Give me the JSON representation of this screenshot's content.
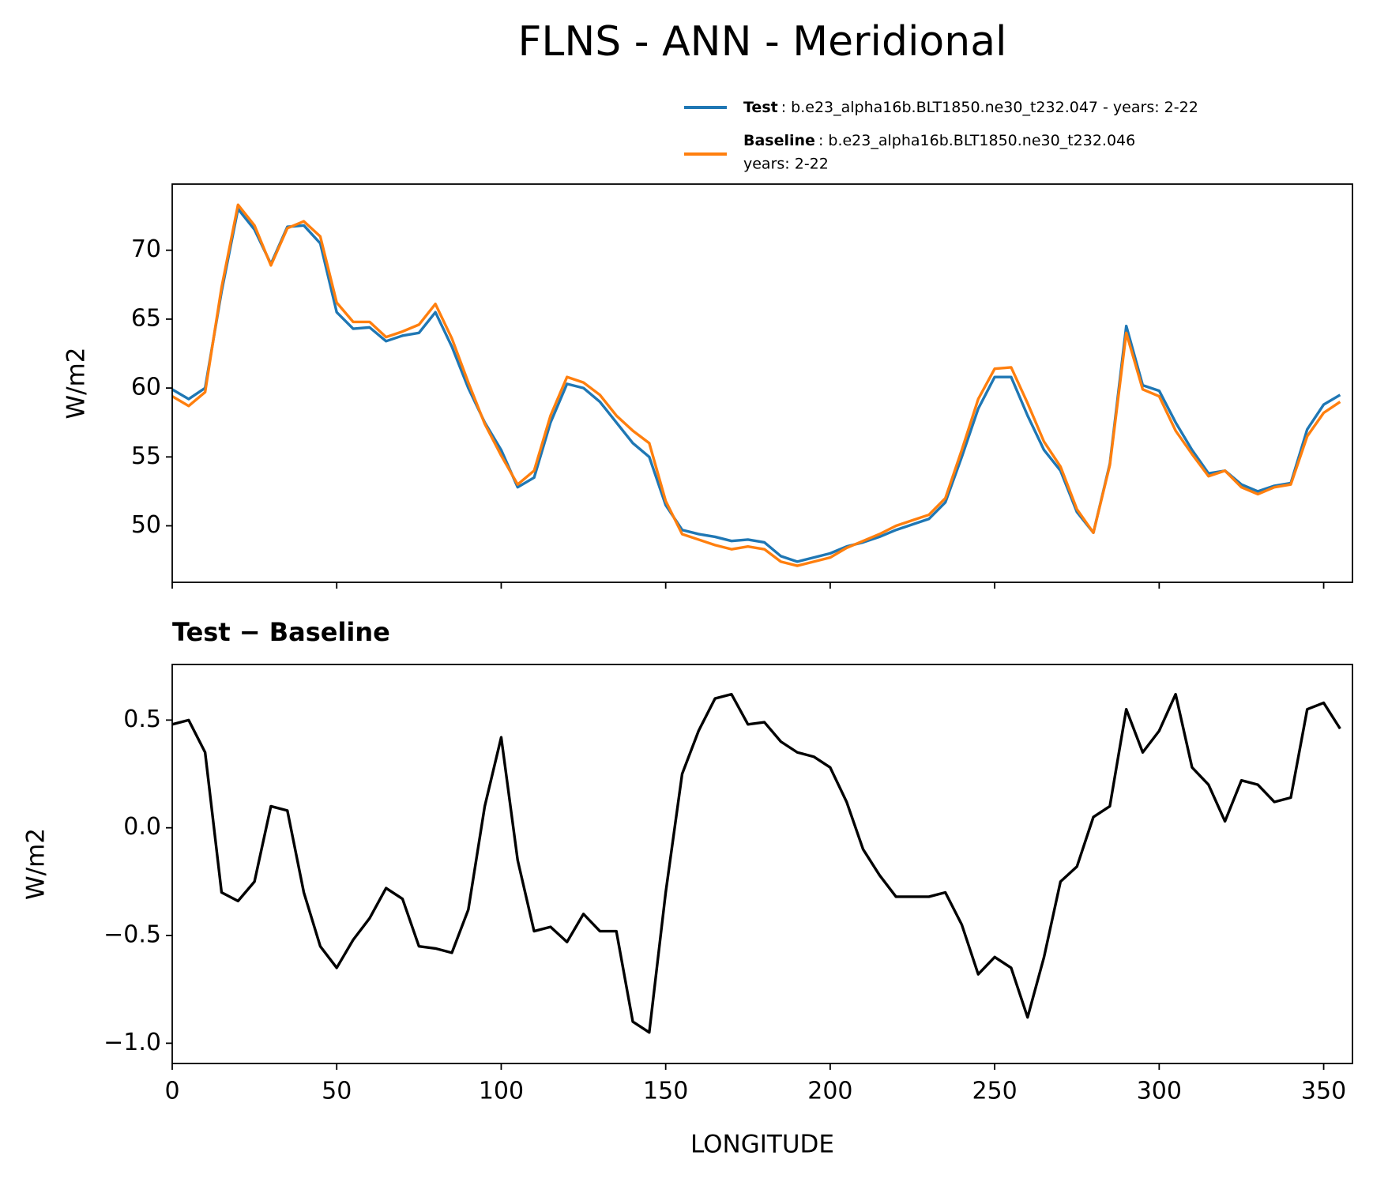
{
  "title": "FLNS - ANN - Meridional",
  "chart_data": [
    {
      "type": "line",
      "ylabel": "W/m2",
      "x": [
        0,
        5,
        10,
        15,
        20,
        25,
        30,
        35,
        40,
        45,
        50,
        55,
        60,
        65,
        70,
        75,
        80,
        85,
        90,
        95,
        100,
        105,
        110,
        115,
        120,
        125,
        130,
        135,
        140,
        145,
        150,
        155,
        160,
        165,
        170,
        175,
        180,
        185,
        190,
        195,
        200,
        205,
        210,
        215,
        220,
        225,
        230,
        235,
        240,
        245,
        250,
        255,
        260,
        265,
        270,
        275,
        280,
        285,
        290,
        295,
        300,
        305,
        310,
        315,
        320,
        325,
        330,
        335,
        340,
        345,
        350,
        355
      ],
      "series": [
        {
          "name": "Test",
          "description": ": b.e23_alpha16b.BLT1850.ne30_t232.047 - years: 2-22",
          "color": "#1f77b4",
          "values": [
            59.9,
            59.2,
            60.0,
            67,
            73.0,
            71.5,
            69.0,
            71.7,
            71.8,
            70.5,
            65.5,
            64.3,
            64.4,
            63.4,
            63.8,
            64.0,
            65.5,
            63.0,
            60.0,
            57.5,
            55.5,
            52.8,
            53.5,
            57.5,
            60.3,
            60.0,
            59.0,
            57.5,
            56.0,
            55.0,
            51.5,
            49.7,
            49.4,
            49.2,
            48.9,
            49.0,
            48.8,
            47.8,
            47.4,
            47.7,
            48.0,
            48.5,
            48.8,
            49.2,
            49.7,
            50.1,
            50.5,
            51.7,
            55.0,
            58.5,
            60.8,
            60.8,
            58.0,
            55.5,
            54.0,
            51.0,
            49.5,
            54.5,
            64.5,
            60.2,
            59.8,
            57.5,
            55.5,
            53.8,
            54.0,
            53.0,
            52.5,
            52.9,
            53.1,
            57.0,
            58.8,
            59.5
          ]
        },
        {
          "name": "Baseline",
          "description": [
            ": b.e23_alpha16b.BLT1850.ne30_t232.046",
            "years: 2-22"
          ],
          "color": "#ff7f0e",
          "values": [
            59.4,
            58.7,
            59.7,
            67.3,
            73.3,
            71.8,
            68.9,
            71.6,
            72.1,
            71.0,
            66.2,
            64.8,
            64.8,
            63.7,
            64.1,
            64.6,
            66.1,
            63.6,
            60.4,
            57.4,
            55.1,
            53.0,
            54.0,
            58.0,
            60.8,
            60.4,
            59.5,
            58.0,
            56.9,
            56.0,
            51.8,
            49.4,
            49.0,
            48.6,
            48.3,
            48.5,
            48.3,
            47.4,
            47.1,
            47.4,
            47.7,
            48.4,
            48.9,
            49.4,
            50.0,
            50.4,
            50.8,
            52.0,
            55.5,
            59.2,
            61.4,
            61.5,
            58.9,
            56.1,
            54.3,
            51.2,
            49.5,
            54.4,
            64.0,
            59.9,
            59.4,
            56.9,
            55.2,
            53.6,
            54.0,
            52.8,
            52.3,
            52.8,
            53.0,
            56.5,
            58.2,
            59.0
          ]
        }
      ],
      "xlim": [
        0,
        358.75
      ],
      "ylim": [
        45.9,
        74.8
      ],
      "yticks": [
        50,
        55,
        60,
        65,
        70
      ]
    },
    {
      "type": "line",
      "title": "Test − Baseline",
      "xlabel": "LONGITUDE",
      "ylabel": "W/m2",
      "x": [
        0,
        5,
        10,
        15,
        20,
        25,
        30,
        35,
        40,
        45,
        50,
        55,
        60,
        65,
        70,
        75,
        80,
        85,
        90,
        95,
        100,
        105,
        110,
        115,
        120,
        125,
        130,
        135,
        140,
        145,
        150,
        155,
        160,
        165,
        170,
        175,
        180,
        185,
        190,
        195,
        200,
        205,
        210,
        215,
        220,
        225,
        230,
        235,
        240,
        245,
        250,
        255,
        260,
        265,
        270,
        275,
        280,
        285,
        290,
        295,
        300,
        305,
        310,
        315,
        320,
        325,
        330,
        335,
        340,
        345,
        350,
        355
      ],
      "series": [
        {
          "color": "#000000",
          "values": [
            0.48,
            0.5,
            0.35,
            -0.3,
            -0.34,
            -0.25,
            0.1,
            0.08,
            -0.3,
            -0.55,
            -0.65,
            -0.52,
            -0.42,
            -0.28,
            -0.33,
            -0.55,
            -0.56,
            -0.58,
            -0.38,
            0.1,
            0.42,
            -0.15,
            -0.48,
            -0.46,
            -0.53,
            -0.4,
            -0.48,
            -0.48,
            -0.9,
            -0.95,
            -0.3,
            0.25,
            0.45,
            0.6,
            0.62,
            0.48,
            0.49,
            0.4,
            0.35,
            0.33,
            0.28,
            0.12,
            -0.1,
            -0.22,
            -0.32,
            -0.32,
            -0.32,
            -0.3,
            -0.45,
            -0.68,
            -0.6,
            -0.65,
            -0.88,
            -0.6,
            -0.25,
            -0.18,
            0.05,
            0.1,
            0.55,
            0.35,
            0.45,
            0.62,
            0.28,
            0.2,
            0.03,
            0.22,
            0.2,
            0.12,
            0.14,
            0.55,
            0.58,
            0.46
          ]
        }
      ],
      "xlim": [
        0,
        358.75
      ],
      "ylim": [
        -1.094,
        0.758
      ],
      "xticks": [
        0,
        50,
        100,
        150,
        200,
        250,
        300,
        350
      ],
      "yticks": [
        {
          "value": -1.0,
          "label": "−1.0"
        },
        {
          "value": -0.5,
          "label": "−0.5"
        },
        {
          "value": 0.0,
          "label": "0.0"
        },
        0.5
      ]
    }
  ]
}
